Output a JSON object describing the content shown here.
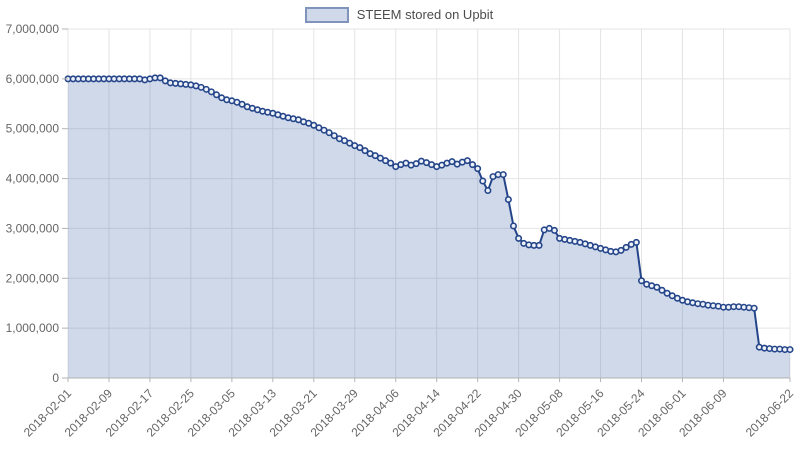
{
  "legend": {
    "series_label": "STEEM stored on Upbit"
  },
  "colors": {
    "line": "#25458a",
    "area_fill": "rgba(64,102,168,0.25)",
    "marker_fill": "#edf1f8",
    "grid": "#e4e4e4",
    "axis_line": "#b3b3b3",
    "tick_text": "#666666"
  },
  "chart_data": {
    "type": "area",
    "title": "STEEM stored on Upbit",
    "xlabel": "",
    "ylabel": "",
    "ylim": [
      0,
      7000000
    ],
    "y_tick_step": 1000000,
    "grid": true,
    "markers": true,
    "legend_position": "top-center",
    "y_tick_labels": [
      "0",
      "1,000,000",
      "2,000,000",
      "3,000,000",
      "4,000,000",
      "5,000,000",
      "6,000,000",
      "7,000,000"
    ],
    "x_tick_labels": [
      "2018-02-01",
      "2018-02-09",
      "2018-02-17",
      "2018-02-25",
      "2018-03-05",
      "2018-03-13",
      "2018-03-21",
      "2018-03-29",
      "2018-04-06",
      "2018-04-14",
      "2018-04-22",
      "2018-04-30",
      "2018-05-08",
      "2018-05-16",
      "2018-05-24",
      "2018-06-01",
      "2018-06-09",
      "2018-06-22"
    ],
    "x": [
      "2018-02-01",
      "2018-02-02",
      "2018-02-03",
      "2018-02-04",
      "2018-02-05",
      "2018-02-06",
      "2018-02-07",
      "2018-02-08",
      "2018-02-09",
      "2018-02-10",
      "2018-02-11",
      "2018-02-12",
      "2018-02-13",
      "2018-02-14",
      "2018-02-15",
      "2018-02-16",
      "2018-02-17",
      "2018-02-18",
      "2018-02-19",
      "2018-02-20",
      "2018-02-21",
      "2018-02-22",
      "2018-02-23",
      "2018-02-24",
      "2018-02-25",
      "2018-02-26",
      "2018-02-27",
      "2018-02-28",
      "2018-03-01",
      "2018-03-02",
      "2018-03-03",
      "2018-03-04",
      "2018-03-05",
      "2018-03-06",
      "2018-03-07",
      "2018-03-08",
      "2018-03-09",
      "2018-03-10",
      "2018-03-11",
      "2018-03-12",
      "2018-03-13",
      "2018-03-14",
      "2018-03-15",
      "2018-03-16",
      "2018-03-17",
      "2018-03-18",
      "2018-03-19",
      "2018-03-20",
      "2018-03-21",
      "2018-03-22",
      "2018-03-23",
      "2018-03-24",
      "2018-03-25",
      "2018-03-26",
      "2018-03-27",
      "2018-03-28",
      "2018-03-29",
      "2018-03-30",
      "2018-03-31",
      "2018-04-01",
      "2018-04-02",
      "2018-04-03",
      "2018-04-04",
      "2018-04-05",
      "2018-04-06",
      "2018-04-07",
      "2018-04-08",
      "2018-04-09",
      "2018-04-10",
      "2018-04-11",
      "2018-04-12",
      "2018-04-13",
      "2018-04-14",
      "2018-04-15",
      "2018-04-16",
      "2018-04-17",
      "2018-04-18",
      "2018-04-19",
      "2018-04-20",
      "2018-04-21",
      "2018-04-22",
      "2018-04-23",
      "2018-04-24",
      "2018-04-25",
      "2018-04-26",
      "2018-04-27",
      "2018-04-28",
      "2018-04-29",
      "2018-04-30",
      "2018-05-01",
      "2018-05-02",
      "2018-05-03",
      "2018-05-04",
      "2018-05-05",
      "2018-05-06",
      "2018-05-07",
      "2018-05-08",
      "2018-05-09",
      "2018-05-10",
      "2018-05-11",
      "2018-05-12",
      "2018-05-13",
      "2018-05-14",
      "2018-05-15",
      "2018-05-16",
      "2018-05-17",
      "2018-05-18",
      "2018-05-19",
      "2018-05-20",
      "2018-05-21",
      "2018-05-22",
      "2018-05-23",
      "2018-05-24",
      "2018-05-25",
      "2018-05-26",
      "2018-05-27",
      "2018-05-28",
      "2018-05-29",
      "2018-05-30",
      "2018-05-31",
      "2018-06-01",
      "2018-06-02",
      "2018-06-03",
      "2018-06-04",
      "2018-06-05",
      "2018-06-06",
      "2018-06-07",
      "2018-06-08",
      "2018-06-09",
      "2018-06-10",
      "2018-06-11",
      "2018-06-12",
      "2018-06-13",
      "2018-06-14",
      "2018-06-15",
      "2018-06-16",
      "2018-06-17",
      "2018-06-18",
      "2018-06-19",
      "2018-06-20",
      "2018-06-21",
      "2018-06-22"
    ],
    "values": [
      6000000,
      6000000,
      6000000,
      6000000,
      6000000,
      6000000,
      6000000,
      6000000,
      6000000,
      6000000,
      6000000,
      6000000,
      6000000,
      6000000,
      6000000,
      5980000,
      6000000,
      6020000,
      6020000,
      5960000,
      5920000,
      5910000,
      5900000,
      5890000,
      5880000,
      5860000,
      5830000,
      5790000,
      5740000,
      5680000,
      5620000,
      5580000,
      5560000,
      5530000,
      5490000,
      5440000,
      5410000,
      5380000,
      5350000,
      5330000,
      5310000,
      5280000,
      5250000,
      5220000,
      5200000,
      5180000,
      5140000,
      5110000,
      5070000,
      5020000,
      4970000,
      4920000,
      4860000,
      4800000,
      4760000,
      4710000,
      4660000,
      4620000,
      4560000,
      4500000,
      4460000,
      4410000,
      4360000,
      4310000,
      4240000,
      4280000,
      4310000,
      4270000,
      4300000,
      4350000,
      4320000,
      4280000,
      4240000,
      4270000,
      4310000,
      4340000,
      4290000,
      4330000,
      4360000,
      4280000,
      4200000,
      3950000,
      3760000,
      4040000,
      4080000,
      4080000,
      3580000,
      3050000,
      2800000,
      2700000,
      2670000,
      2660000,
      2660000,
      2970000,
      3000000,
      2960000,
      2800000,
      2780000,
      2760000,
      2740000,
      2720000,
      2690000,
      2660000,
      2630000,
      2600000,
      2570000,
      2540000,
      2530000,
      2560000,
      2620000,
      2680000,
      2720000,
      1950000,
      1880000,
      1850000,
      1820000,
      1760000,
      1700000,
      1650000,
      1600000,
      1560000,
      1530000,
      1510000,
      1490000,
      1480000,
      1460000,
      1450000,
      1440000,
      1420000,
      1420000,
      1430000,
      1430000,
      1420000,
      1410000,
      1400000,
      620000,
      600000,
      590000,
      580000,
      580000,
      570000,
      570000
    ]
  }
}
